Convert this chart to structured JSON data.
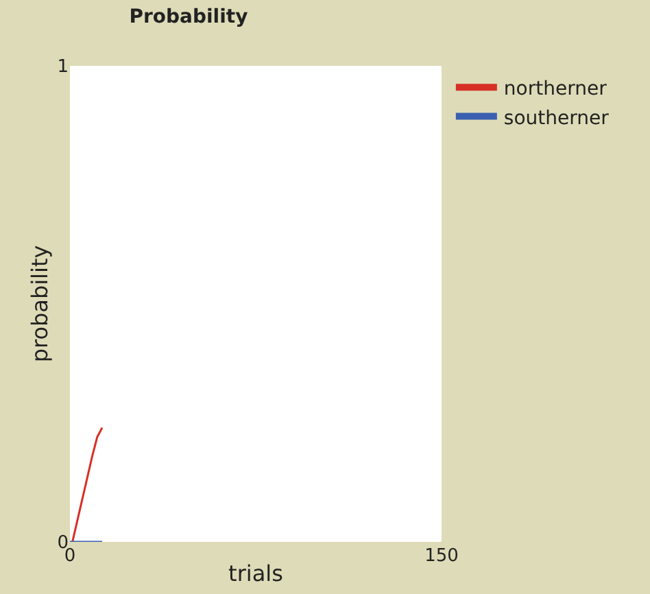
{
  "chart_data": {
    "type": "line",
    "title": "Probability",
    "xlabel": "trials",
    "ylabel": "probability",
    "xlim": [
      0,
      150
    ],
    "xticks": [
      0,
      150
    ],
    "ylim": [
      0,
      1
    ],
    "yticks": [
      0,
      1
    ],
    "legend": "top right",
    "marker": "none",
    "line_style": "solid",
    "series": [
      {
        "name": "northerner",
        "color": "#d73027",
        "x": [
          1,
          5,
          9,
          11,
          13
        ],
        "values": [
          0,
          0.09,
          0.18,
          0.22,
          0.24
        ]
      },
      {
        "name": "southerner",
        "color": "#3a5fb0",
        "x": [
          0,
          13
        ],
        "values": [
          0,
          0
        ]
      }
    ]
  }
}
